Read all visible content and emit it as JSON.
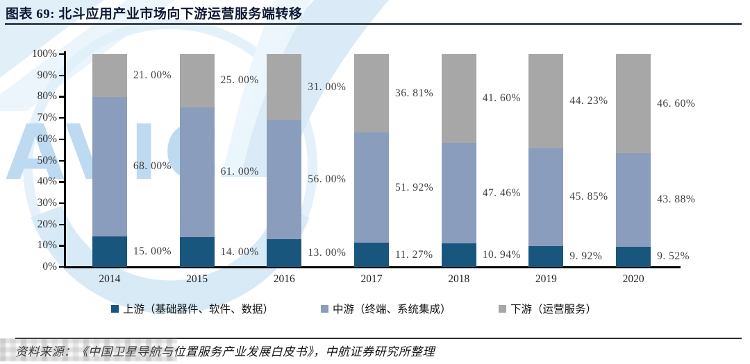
{
  "figure": {
    "title": "图表 69: 北斗应用产业市场向下游运营服务端转移",
    "source": "资料来源：《中国卫星导航与位置服务产业发展白皮书》，中航证券研究所整理"
  },
  "watermark": {
    "logo_text": "AVIC"
  },
  "colors": {
    "upstream": "#19567e",
    "midstream": "#8a9dbd",
    "downstream": "#a7a7a7",
    "axis": "#000000",
    "watermark_blue": "#cde3f4"
  },
  "chart_data": {
    "type": "bar",
    "stacked": true,
    "unit": "%",
    "title": "北斗应用产业市场向下游运营服务端转移",
    "categories": [
      "2014",
      "2015",
      "2016",
      "2017",
      "2018",
      "2019",
      "2020"
    ],
    "series": [
      {
        "name": "上游（基础器件、软件、数据）",
        "key": "upstream",
        "values": [
          15.0,
          14.0,
          13.0,
          11.27,
          10.94,
          9.92,
          9.52
        ],
        "labels": [
          "15. 00%",
          "14. 00%",
          "13. 00%",
          "11. 27%",
          "10. 94%",
          "9. 92%",
          "9. 52%"
        ]
      },
      {
        "name": "中游（终端、系统集成）",
        "key": "midstream",
        "values": [
          68.0,
          61.0,
          56.0,
          51.92,
          47.46,
          45.85,
          43.88
        ],
        "labels": [
          "68. 00%",
          "61. 00%",
          "56. 00%",
          "51. 92%",
          "47. 46%",
          "45. 85%",
          "43. 88%"
        ]
      },
      {
        "name": "下游（运营服务）",
        "key": "downstream",
        "values": [
          21.0,
          25.0,
          31.0,
          36.81,
          41.6,
          44.23,
          46.6
        ],
        "labels": [
          "21. 00%",
          "25. 00%",
          "31. 00%",
          "36. 81%",
          "41. 60%",
          "44. 23%",
          "46. 60%"
        ]
      }
    ],
    "y_axis": {
      "ticks": [
        "100%",
        "90%",
        "80%",
        "70%",
        "60%",
        "50%",
        "40%",
        "30%",
        "20%",
        "10%",
        "0%"
      ],
      "min": 0,
      "max": 100
    },
    "grid": false,
    "legend_position": "bottom"
  }
}
